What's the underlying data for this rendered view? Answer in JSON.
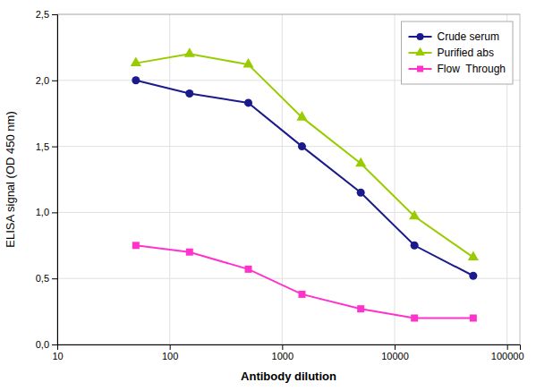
{
  "chart_data": {
    "type": "line",
    "x": [
      50,
      150,
      500,
      1500,
      5000,
      15000,
      50000
    ],
    "series": [
      {
        "name": "Crude serum",
        "color": "#1a1a8c",
        "marker": "circle",
        "values": [
          2.0,
          1.9,
          1.83,
          1.5,
          1.15,
          0.75,
          0.52
        ]
      },
      {
        "name": "Purified abs",
        "color": "#99cc00",
        "marker": "triangle",
        "values": [
          2.13,
          2.2,
          2.12,
          1.72,
          1.37,
          0.97,
          0.66
        ]
      },
      {
        "name": "Flow  Through",
        "color": "#ff33cc",
        "marker": "square",
        "values": [
          0.75,
          0.7,
          0.57,
          0.38,
          0.27,
          0.2,
          0.2
        ]
      }
    ],
    "x_label": "Antibody dilution",
    "y_label": "ELISA signal (OD 450 nm)",
    "xlim": [
      10,
      130000
    ],
    "xticks": [
      10,
      100,
      1000,
      10000,
      100000
    ],
    "ylim": [
      0.0,
      2.5
    ],
    "yticks": [
      {
        "value": 0.0,
        "label": "0,0"
      },
      {
        "value": 0.5,
        "label": "0,5"
      },
      {
        "value": 1.0,
        "label": "1,0"
      },
      {
        "value": 1.5,
        "label": "1,5"
      },
      {
        "value": 2.0,
        "label": "2,0"
      },
      {
        "value": 2.5,
        "label": "2,5"
      }
    ],
    "log": "x",
    "grid": true,
    "legend": "upper right"
  }
}
